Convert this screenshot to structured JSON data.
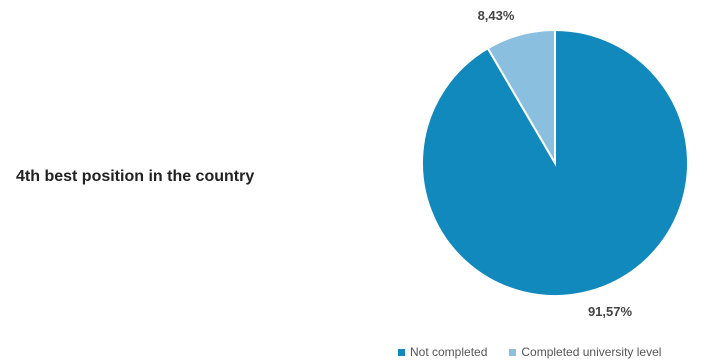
{
  "headline": "4th best position in the country",
  "chart_data": {
    "type": "pie",
    "title": "",
    "slices": [
      {
        "name": "Not completed",
        "value": 91.57,
        "label": "91,57%",
        "color": "#1289BC"
      },
      {
        "name": "Completed university level",
        "value": 8.43,
        "label": "8,43%",
        "color": "#8ABFE0"
      }
    ],
    "legend_position": "bottom-right"
  }
}
